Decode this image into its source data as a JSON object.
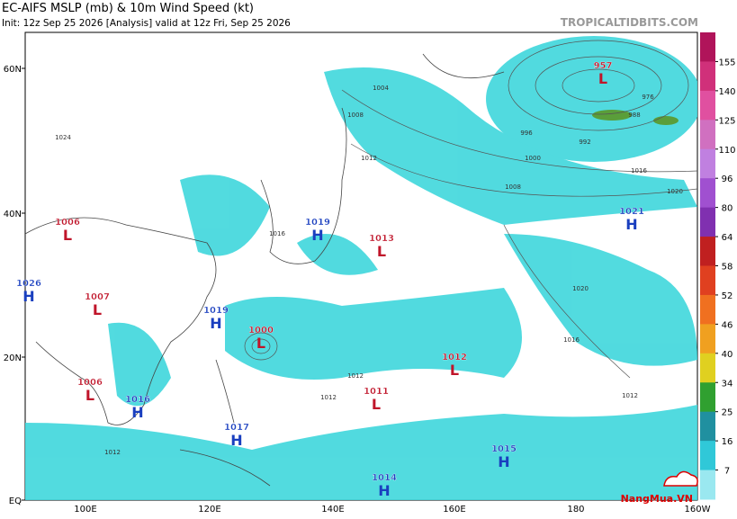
{
  "header": {
    "title": "EC-AIFS MSLP (mb) & 10m Wind Speed (kt)",
    "subtitle": "Init: 12z Sep 25 2026   [Analysis]   valid at 12z Fri, Sep 25 2026",
    "site": "TROPICALTIDBITS.COM"
  },
  "map": {
    "lat_labels": [
      "60N",
      "40N",
      "20N",
      "EQ"
    ],
    "lon_labels": [
      "100E",
      "120E",
      "140E",
      "160E",
      "180",
      "160W"
    ],
    "centers": [
      {
        "value": 1006,
        "letter": "L"
      },
      {
        "value": 1026,
        "letter": "H"
      },
      {
        "value": 1007,
        "letter": "L"
      },
      {
        "value": 1019,
        "letter": "H"
      },
      {
        "value": 1013,
        "letter": "L"
      },
      {
        "value": 957,
        "letter": "L"
      },
      {
        "value": 1021,
        "letter": "H"
      },
      {
        "value": 1019,
        "letter": "H"
      },
      {
        "value": 1000,
        "letter": "L"
      },
      {
        "value": 1012,
        "letter": "L"
      },
      {
        "value": 1006,
        "letter": "L"
      },
      {
        "value": 1016,
        "letter": "H"
      },
      {
        "value": 1011,
        "letter": "L"
      },
      {
        "value": 1017,
        "letter": "H"
      },
      {
        "value": 1015,
        "letter": "H"
      },
      {
        "value": 1014,
        "letter": "H"
      }
    ],
    "isobar_labels": [
      996,
      1000,
      1004,
      1008,
      1012,
      1016,
      1020,
      1024,
      1012,
      1016,
      1012,
      1012,
      1016,
      1008,
      1020,
      1012,
      992,
      976,
      988
    ]
  },
  "colorbar": {
    "ticks": [
      155,
      140,
      125,
      110,
      96,
      80,
      64,
      58,
      52,
      46,
      40,
      34,
      25,
      16,
      7
    ]
  },
  "watermark": "NangMua.VN"
}
